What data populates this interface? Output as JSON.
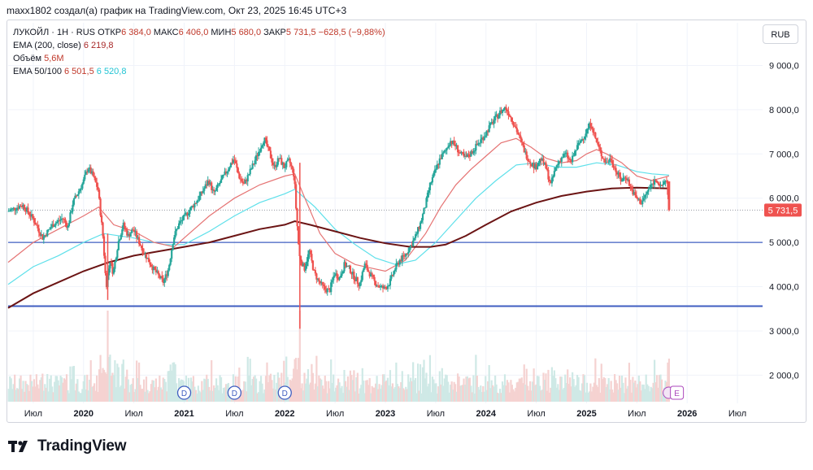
{
  "caption": "maxx1802 создал(а) график на TradingView.com, Окт 23, 2025 16:45 UTC+3",
  "currency_button": "RUB",
  "legend": {
    "symbol": "ЛУКОЙЛ · 1Н · RUS",
    "open_label": "ОТКР",
    "open_value": "6 384,0",
    "high_label": "МАКС",
    "high_value": "6 406,0",
    "low_label": "МИН",
    "low_value": "5 680,0",
    "close_label": "ЗАКР",
    "close_value": "5 731,5",
    "change": "−628,5 (−9,88%)",
    "ema200_label": "EMA (200, close)",
    "ema200_value": "6 219,8",
    "volume_label": "Объём",
    "volume_value": "5,6M",
    "ema50_100_label": "EMA 50/100",
    "ema50_value": "6 501,5",
    "ema100_value": "6 520,8"
  },
  "brand": "TradingView",
  "colors": {
    "up": "#26a69a",
    "down": "#ef5350",
    "ema200": "#6b1414",
    "ema50": "#e57373",
    "ema100": "#5ee0ea",
    "hline": "#3f5ec0",
    "price_tag": "#ef5350",
    "grid": "#f0f3fa"
  },
  "chart_data": {
    "type": "candlestick",
    "title": "ЛУКОЙЛ · 1Н · RUS",
    "ylim": [
      1400,
      9450
    ],
    "y_ticks": [
      2000,
      3000,
      4000,
      5000,
      6000,
      7000,
      8000,
      9000
    ],
    "y_tick_labels": [
      "2 000,0",
      "3 000,0",
      "4 000,0",
      "5 000,0",
      "6 000,0",
      "7 000,0",
      "8 000,0",
      "9 000,0"
    ],
    "x_range": [
      2019.25,
      2026.75
    ],
    "x_ticks": [
      {
        "t": 2019.5,
        "label": "Июл",
        "bold": false
      },
      {
        "t": 2020.0,
        "label": "2020",
        "bold": true
      },
      {
        "t": 2020.5,
        "label": "Июл",
        "bold": false
      },
      {
        "t": 2021.0,
        "label": "2021",
        "bold": true
      },
      {
        "t": 2021.5,
        "label": "Июл",
        "bold": false
      },
      {
        "t": 2022.0,
        "label": "2022",
        "bold": true
      },
      {
        "t": 2022.5,
        "label": "Июл",
        "bold": false
      },
      {
        "t": 2023.0,
        "label": "2023",
        "bold": true
      },
      {
        "t": 2023.5,
        "label": "Июл",
        "bold": false
      },
      {
        "t": 2024.0,
        "label": "2024",
        "bold": true
      },
      {
        "t": 2024.5,
        "label": "Июл",
        "bold": false
      },
      {
        "t": 2025.0,
        "label": "2025",
        "bold": true
      },
      {
        "t": 2025.5,
        "label": "Июл",
        "bold": false
      },
      {
        "t": 2026.0,
        "label": "2026",
        "bold": true
      },
      {
        "t": 2026.5,
        "label": "Июл",
        "bold": false
      }
    ],
    "horizontal_lines": [
      5000,
      3560
    ],
    "last_price": 5731.5,
    "last_price_label": "5 731,5",
    "dividend_markers": [
      {
        "t": 2021.0,
        "label": "D"
      },
      {
        "t": 2021.5,
        "label": "D"
      },
      {
        "t": 2022.0,
        "label": "D"
      }
    ],
    "event_marker": {
      "t": 2025.85,
      "label": "E"
    },
    "price_path": [
      [
        2019.25,
        5700
      ],
      [
        2019.4,
        5850
      ],
      [
        2019.5,
        5550
      ],
      [
        2019.6,
        5100
      ],
      [
        2019.7,
        5400
      ],
      [
        2019.8,
        5550
      ],
      [
        2019.85,
        5350
      ],
      [
        2019.9,
        5900
      ],
      [
        2020.0,
        6350
      ],
      [
        2020.05,
        6700
      ],
      [
        2020.1,
        6500
      ],
      [
        2020.15,
        6200
      ],
      [
        2020.2,
        5100
      ],
      [
        2020.23,
        4000
      ],
      [
        2020.27,
        4600
      ],
      [
        2020.3,
        4300
      ],
      [
        2020.35,
        5000
      ],
      [
        2020.4,
        5400
      ],
      [
        2020.45,
        5150
      ],
      [
        2020.5,
        5300
      ],
      [
        2020.6,
        4800
      ],
      [
        2020.7,
        4400
      ],
      [
        2020.8,
        4100
      ],
      [
        2020.85,
        4400
      ],
      [
        2020.9,
        5100
      ],
      [
        2020.95,
        5400
      ],
      [
        2021.05,
        5700
      ],
      [
        2021.15,
        6000
      ],
      [
        2021.25,
        6400
      ],
      [
        2021.3,
        6100
      ],
      [
        2021.4,
        6500
      ],
      [
        2021.5,
        6900
      ],
      [
        2021.55,
        6500
      ],
      [
        2021.6,
        6300
      ],
      [
        2021.7,
        6800
      ],
      [
        2021.8,
        7350
      ],
      [
        2021.85,
        7050
      ],
      [
        2021.9,
        6700
      ],
      [
        2021.95,
        6900
      ],
      [
        2022.0,
        6700
      ],
      [
        2022.05,
        6850
      ],
      [
        2022.1,
        6500
      ],
      [
        2022.12,
        5700
      ],
      [
        2022.15,
        4700
      ],
      [
        2022.2,
        4400
      ],
      [
        2022.25,
        4800
      ],
      [
        2022.3,
        4300
      ],
      [
        2022.35,
        4100
      ],
      [
        2022.4,
        3950
      ],
      [
        2022.45,
        3900
      ],
      [
        2022.5,
        4300
      ],
      [
        2022.55,
        4200
      ],
      [
        2022.6,
        4500
      ],
      [
        2022.65,
        4400
      ],
      [
        2022.7,
        4200
      ],
      [
        2022.75,
        4050
      ],
      [
        2022.8,
        4500
      ],
      [
        2022.85,
        4300
      ],
      [
        2022.9,
        4100
      ],
      [
        2022.95,
        4000
      ],
      [
        2023.0,
        3950
      ],
      [
        2023.05,
        4100
      ],
      [
        2023.1,
        4400
      ],
      [
        2023.15,
        4600
      ],
      [
        2023.2,
        4700
      ],
      [
        2023.3,
        5100
      ],
      [
        2023.35,
        5400
      ],
      [
        2023.4,
        5800
      ],
      [
        2023.45,
        6300
      ],
      [
        2023.5,
        6600
      ],
      [
        2023.55,
        6900
      ],
      [
        2023.6,
        7050
      ],
      [
        2023.65,
        7300
      ],
      [
        2023.7,
        7200
      ],
      [
        2023.75,
        7000
      ],
      [
        2023.8,
        6900
      ],
      [
        2023.85,
        7000
      ],
      [
        2023.9,
        7150
      ],
      [
        2023.95,
        7300
      ],
      [
        2024.0,
        7450
      ],
      [
        2024.05,
        7650
      ],
      [
        2024.1,
        7800
      ],
      [
        2024.15,
        7950
      ],
      [
        2024.2,
        8050
      ],
      [
        2024.25,
        7850
      ],
      [
        2024.3,
        7600
      ],
      [
        2024.35,
        7300
      ],
      [
        2024.4,
        7000
      ],
      [
        2024.45,
        6800
      ],
      [
        2024.5,
        6700
      ],
      [
        2024.55,
        6900
      ],
      [
        2024.6,
        6700
      ],
      [
        2024.65,
        6300
      ],
      [
        2024.7,
        6700
      ],
      [
        2024.75,
        6900
      ],
      [
        2024.8,
        7000
      ],
      [
        2024.85,
        6800
      ],
      [
        2024.9,
        7100
      ],
      [
        2024.95,
        7300
      ],
      [
        2025.0,
        7500
      ],
      [
        2025.05,
        7700
      ],
      [
        2025.1,
        7300
      ],
      [
        2025.15,
        7000
      ],
      [
        2025.2,
        6800
      ],
      [
        2025.25,
        6900
      ],
      [
        2025.3,
        6600
      ],
      [
        2025.35,
        6400
      ],
      [
        2025.4,
        6500
      ],
      [
        2025.45,
        6200
      ],
      [
        2025.5,
        6000
      ],
      [
        2025.55,
        5900
      ],
      [
        2025.6,
        6100
      ],
      [
        2025.65,
        6300
      ],
      [
        2025.7,
        6450
      ],
      [
        2025.75,
        6200
      ],
      [
        2025.78,
        6400
      ],
      [
        2025.81,
        6380
      ],
      [
        2025.82,
        5731.5
      ]
    ],
    "ema50_path": [
      [
        2019.25,
        4550
      ],
      [
        2019.5,
        5000
      ],
      [
        2019.75,
        5300
      ],
      [
        2020.0,
        5600
      ],
      [
        2020.15,
        5800
      ],
      [
        2020.3,
        5400
      ],
      [
        2020.5,
        5250
      ],
      [
        2020.7,
        5000
      ],
      [
        2020.9,
        4900
      ],
      [
        2021.0,
        5100
      ],
      [
        2021.25,
        5600
      ],
      [
        2021.5,
        6000
      ],
      [
        2021.75,
        6300
      ],
      [
        2022.0,
        6500
      ],
      [
        2022.1,
        6550
      ],
      [
        2022.2,
        6000
      ],
      [
        2022.35,
        5200
      ],
      [
        2022.5,
        4750
      ],
      [
        2022.7,
        4500
      ],
      [
        2022.9,
        4400
      ],
      [
        2023.0,
        4350
      ],
      [
        2023.2,
        4600
      ],
      [
        2023.4,
        5200
      ],
      [
        2023.55,
        5800
      ],
      [
        2023.7,
        6300
      ],
      [
        2023.85,
        6650
      ],
      [
        2024.0,
        6950
      ],
      [
        2024.15,
        7250
      ],
      [
        2024.3,
        7350
      ],
      [
        2024.45,
        7150
      ],
      [
        2024.6,
        6900
      ],
      [
        2024.75,
        6800
      ],
      [
        2024.9,
        6850
      ],
      [
        2025.0,
        7000
      ],
      [
        2025.1,
        7100
      ],
      [
        2025.2,
        7000
      ],
      [
        2025.35,
        6800
      ],
      [
        2025.5,
        6500
      ],
      [
        2025.65,
        6400
      ],
      [
        2025.82,
        6501.5
      ]
    ],
    "ema100_path": [
      [
        2019.25,
        4050
      ],
      [
        2019.5,
        4450
      ],
      [
        2019.75,
        4700
      ],
      [
        2020.0,
        5000
      ],
      [
        2020.2,
        5200
      ],
      [
        2020.5,
        5100
      ],
      [
        2020.8,
        4950
      ],
      [
        2021.0,
        4950
      ],
      [
        2021.25,
        5250
      ],
      [
        2021.5,
        5600
      ],
      [
        2021.75,
        5900
      ],
      [
        2022.0,
        6100
      ],
      [
        2022.1,
        6200
      ],
      [
        2022.3,
        5800
      ],
      [
        2022.5,
        5300
      ],
      [
        2022.7,
        4950
      ],
      [
        2022.9,
        4650
      ],
      [
        2023.1,
        4500
      ],
      [
        2023.3,
        4600
      ],
      [
        2023.5,
        5000
      ],
      [
        2023.7,
        5500
      ],
      [
        2023.9,
        6000
      ],
      [
        2024.1,
        6400
      ],
      [
        2024.3,
        6750
      ],
      [
        2024.5,
        6800
      ],
      [
        2024.7,
        6700
      ],
      [
        2024.9,
        6700
      ],
      [
        2025.1,
        6800
      ],
      [
        2025.3,
        6750
      ],
      [
        2025.5,
        6600
      ],
      [
        2025.65,
        6550
      ],
      [
        2025.82,
        6520.8
      ]
    ],
    "ema200_path": [
      [
        2019.25,
        3520
      ],
      [
        2019.5,
        3850
      ],
      [
        2019.75,
        4100
      ],
      [
        2020.0,
        4350
      ],
      [
        2020.25,
        4550
      ],
      [
        2020.5,
        4700
      ],
      [
        2020.75,
        4800
      ],
      [
        2021.0,
        4900
      ],
      [
        2021.25,
        5000
      ],
      [
        2021.5,
        5150
      ],
      [
        2021.75,
        5300
      ],
      [
        2022.0,
        5400
      ],
      [
        2022.1,
        5480
      ],
      [
        2022.25,
        5400
      ],
      [
        2022.5,
        5250
      ],
      [
        2022.75,
        5100
      ],
      [
        2023.0,
        4980
      ],
      [
        2023.25,
        4900
      ],
      [
        2023.45,
        4900
      ],
      [
        2023.6,
        4950
      ],
      [
        2023.8,
        5150
      ],
      [
        2024.0,
        5400
      ],
      [
        2024.25,
        5700
      ],
      [
        2024.5,
        5900
      ],
      [
        2024.75,
        6050
      ],
      [
        2025.0,
        6150
      ],
      [
        2025.25,
        6220
      ],
      [
        2025.5,
        6240
      ],
      [
        2025.82,
        6219.8
      ]
    ]
  }
}
